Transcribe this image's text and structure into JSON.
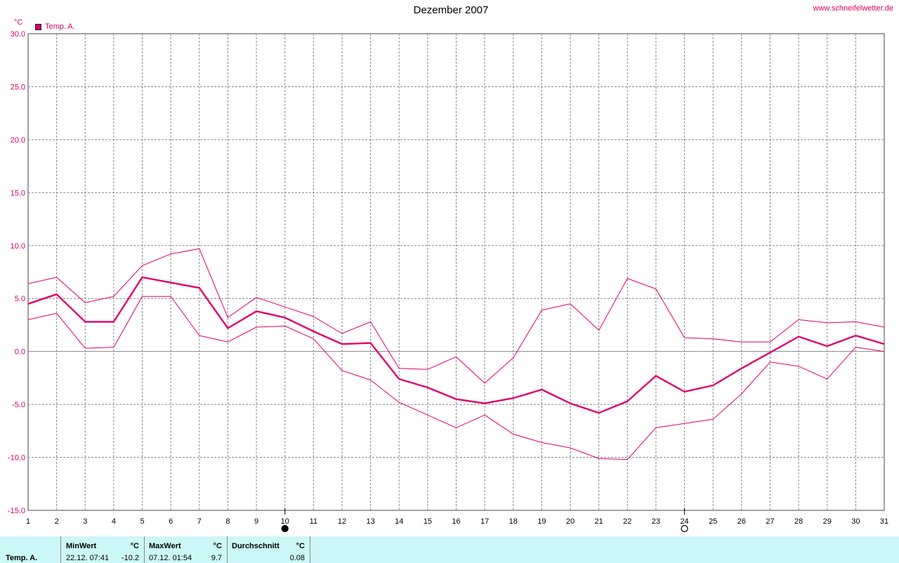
{
  "header": {
    "title": "Dezember 2007",
    "site": "www.schneifelwetter.de",
    "unit": "°C",
    "legend": "Temp. A."
  },
  "colors": {
    "series": "#e0006c",
    "grid": "#888888",
    "axis_text": "#d4006a"
  },
  "chart_data": {
    "type": "line",
    "title": "Dezember 2007",
    "ylabel": "°C",
    "ylim": [
      -15,
      30
    ],
    "y_ticks": [
      "30.0",
      "25.0",
      "20.0",
      "15.0",
      "10.0",
      "5.0",
      "0.0",
      "-5.0",
      "-10.0",
      "-15.0"
    ],
    "xlim": [
      1,
      31
    ],
    "x": [
      1,
      2,
      3,
      4,
      5,
      6,
      7,
      8,
      9,
      10,
      11,
      12,
      13,
      14,
      15,
      16,
      17,
      18,
      19,
      20,
      21,
      22,
      23,
      24,
      25,
      26,
      27,
      28,
      29,
      30,
      31
    ],
    "grid": true,
    "legend_position": "top-left",
    "series": [
      {
        "name": "Temp. A.",
        "role": "avg",
        "values": [
          4.5,
          5.4,
          2.8,
          2.8,
          7.0,
          6.5,
          6.0,
          2.2,
          3.8,
          3.2,
          1.9,
          0.7,
          0.8,
          -2.6,
          -3.4,
          -4.5,
          -4.9,
          -4.4,
          -3.6,
          -4.9,
          -5.8,
          -4.7,
          -2.3,
          -3.8,
          -3.2,
          -1.6,
          -0.1,
          1.4,
          0.5,
          1.5,
          0.7
        ]
      },
      {
        "role": "max",
        "values": [
          6.4,
          7.0,
          4.6,
          5.2,
          8.1,
          9.2,
          9.7,
          3.2,
          5.1,
          4.2,
          3.3,
          1.7,
          2.8,
          -1.6,
          -1.7,
          -0.5,
          -3.0,
          -0.6,
          3.9,
          4.5,
          2.0,
          6.9,
          5.9,
          1.3,
          1.2,
          0.9,
          0.9,
          3.0,
          2.7,
          2.8,
          2.3
        ]
      },
      {
        "role": "min",
        "values": [
          3.0,
          3.6,
          0.3,
          0.4,
          5.2,
          5.2,
          1.5,
          0.9,
          2.3,
          2.4,
          1.2,
          -1.8,
          -2.7,
          -4.8,
          -6.0,
          -7.2,
          -6.0,
          -7.8,
          -8.6,
          -9.1,
          -10.1,
          -10.2,
          -7.2,
          -6.8,
          -6.4,
          -4.0,
          -1.0,
          -1.4,
          -2.6,
          0.4,
          0.0
        ]
      }
    ],
    "markers": [
      {
        "x": 10,
        "symbol": "full-moon"
      },
      {
        "x": 24,
        "symbol": "new-moon"
      }
    ]
  },
  "footer": {
    "row_label": "Temp. A.",
    "min": {
      "header": "MinWert",
      "unit": "°C",
      "date": "22.12.  07:41",
      "value": "-10.2"
    },
    "max": {
      "header": "MaxWert",
      "unit": "°C",
      "date": "07.12.  01:54",
      "value": "9.7"
    },
    "avg": {
      "header": "Durchschnitt",
      "unit": "°C",
      "value": "0.08"
    }
  }
}
